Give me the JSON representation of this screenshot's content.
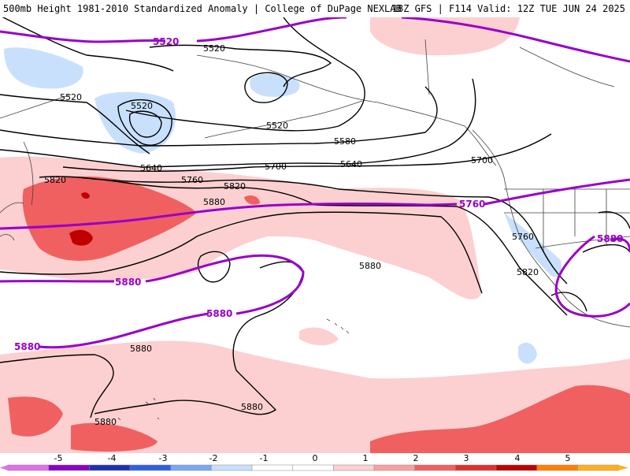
{
  "header": {
    "title_left": "500mb Height 1981-2010 Standardized Anomaly | College of DuPage NEXLAB",
    "title_right": "18Z GFS | F114 Valid: 12Z TUE JUN 24 2025"
  },
  "contour_labels": {
    "black": [
      "5520",
      "5520",
      "5520",
      "5520",
      "5580",
      "5640",
      "5640",
      "5700",
      "5700",
      "5760",
      "5820",
      "5820",
      "5880",
      "5880",
      "5760",
      "5820",
      "5880",
      "5880",
      "5880"
    ],
    "purple": [
      "5520",
      "5760",
      "5880",
      "5880",
      "5880",
      "5880"
    ]
  },
  "colorbar": {
    "ticks": [
      "-5",
      "-4",
      "-3",
      "-2",
      "-1",
      "0",
      "1",
      "2",
      "3",
      "4",
      "5"
    ],
    "colors": [
      "#e070e8",
      "#8a00c8",
      "#2030b0",
      "#3060e0",
      "#7aa8f0",
      "#c8e0fc",
      "#ffffff",
      "#ffffff",
      "#fcd0d0",
      "#f8a0a0",
      "#f06060",
      "#e03030",
      "#c00000",
      "#ff8000",
      "#ffb020"
    ]
  }
}
